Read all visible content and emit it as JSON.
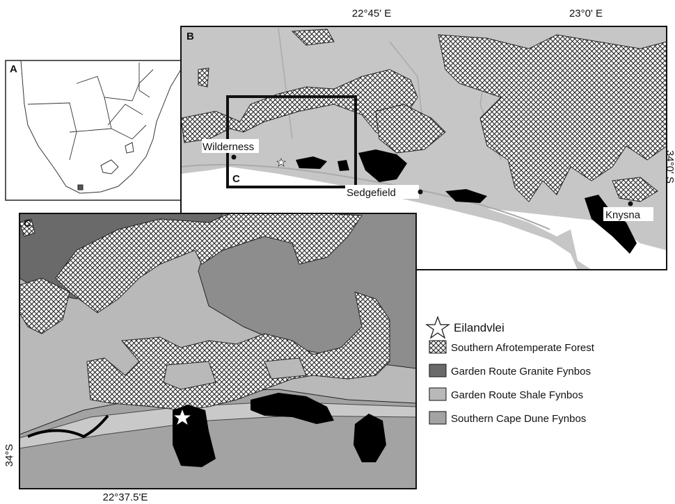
{
  "panels": {
    "a": {
      "label": "A"
    },
    "b": {
      "label": "B",
      "x_labels": [
        "22°45' E",
        "23°0' E"
      ],
      "y_label": "34°0' S",
      "places": [
        "Wilderness",
        "Sedgefield",
        "Knysna"
      ],
      "inset_label": "C"
    },
    "c": {
      "label": "C",
      "x_label": "22°37.5'E",
      "y_label": "34°S"
    }
  },
  "legend": [
    "Eilandvlei",
    "Southern Afrotemperate Forest",
    "Garden Route Granite Fynbos",
    "Garden Route Shale Fynbos",
    "Southern Cape Dune Fynbos"
  ]
}
